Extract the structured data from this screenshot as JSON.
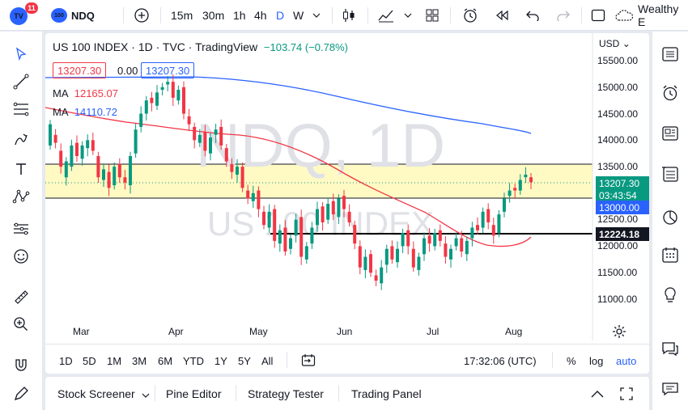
{
  "top": {
    "notif_count": "11",
    "symbol_icon_text": "100",
    "symbol": "NDQ",
    "intervals": [
      "15m",
      "30m",
      "1h",
      "4h",
      "D",
      "W"
    ],
    "active_interval": "D",
    "layout_name": "Wealthy E"
  },
  "legend": {
    "title": "US 100 INDEX · 1D · TVC · TradingView",
    "change": "−103.74 (−0.78%)",
    "bid": "13207.30",
    "spread": "0.00",
    "ask": "13207.30",
    "ma1_label": "MA",
    "ma1_value": "12165.07",
    "ma2_label": "MA",
    "ma2_value": "14110.72"
  },
  "watermark": {
    "big": "NDQ, 1D",
    "small": "US 100 INDEX"
  },
  "currency": "USD",
  "y_ticks": [
    "15500.00",
    "15000.00",
    "14500.00",
    "14000.00",
    "13500.00",
    "12500.00",
    "12000.00",
    "11500.00",
    "11000.00"
  ],
  "x_ticks": [
    "Mar",
    "Apr",
    "May",
    "Jun",
    "Jul",
    "Aug"
  ],
  "price_tags": {
    "last": "13207.30",
    "countdown": "03:43:54",
    "level1": "13000.00",
    "level2": "12224.18"
  },
  "ranges": [
    "1D",
    "5D",
    "1M",
    "3M",
    "6M",
    "YTD",
    "1Y",
    "5Y",
    "All"
  ],
  "clock": "17:32:06 (UTC)",
  "scale_opts": {
    "pct": "%",
    "log": "log",
    "auto": "auto"
  },
  "bottom_tabs": [
    "Stock Screener",
    "Pine Editor",
    "Strategy Tester",
    "Trading Panel"
  ],
  "colors": {
    "up": "#089981",
    "down": "#f23645",
    "ma_fast": "#f23645",
    "ma_slow": "#2962ff",
    "zone": "#fff9c4",
    "accent": "#2962ff"
  }
}
